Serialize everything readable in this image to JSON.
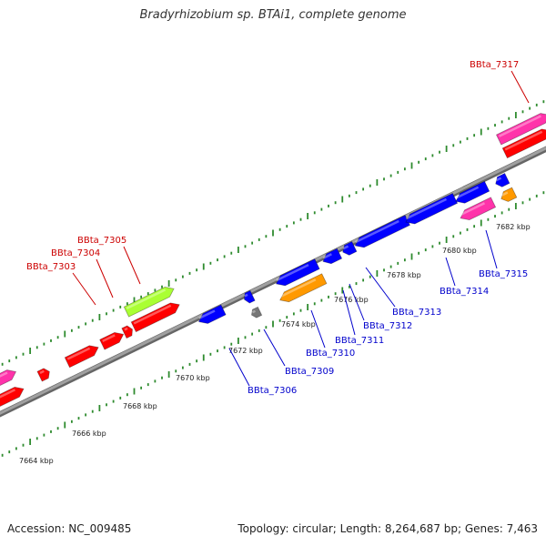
{
  "title": "Bradyrhizobium sp. BTAi1, complete genome",
  "footer": {
    "accession": "Accession: NC_009485",
    "topology": "Topology: circular; Length: 8,264,687 bp; Genes: 7,463"
  },
  "colors": {
    "backbone": "#8c8c8c",
    "dots": "#2e8b2e",
    "forward_label": "#cc0000",
    "reverse_label": "#0000cc",
    "red": "#ff0000",
    "blue": "#0000ff",
    "magenta": "#ff33aa",
    "lime": "#aaff33",
    "orange": "#ff9900",
    "gray": "#777777"
  },
  "scale_ticks": [
    {
      "kbp": 7664,
      "label": "7664 kbp"
    },
    {
      "kbp": 7666,
      "label": "7666 kbp"
    },
    {
      "kbp": 7668,
      "label": "7668 kbp"
    },
    {
      "kbp": 7670,
      "label": "7670 kbp"
    },
    {
      "kbp": 7672,
      "label": "7672 kbp"
    },
    {
      "kbp": 7674,
      "label": "7674 kbp"
    },
    {
      "kbp": 7676,
      "label": "7676 kbp"
    },
    {
      "kbp": 7678,
      "label": "7678 kbp"
    },
    {
      "kbp": 7680,
      "label": "7680 kbp"
    },
    {
      "kbp": 7682,
      "label": "7682 kbp"
    }
  ],
  "forward_labels": [
    {
      "id": "BBta_7303",
      "text": "BBta_7303"
    },
    {
      "id": "BBta_7304",
      "text": "BBta_7304"
    },
    {
      "id": "BBta_7305",
      "text": "BBta_7305"
    },
    {
      "id": "BBta_7317",
      "text": "BBta_7317"
    }
  ],
  "reverse_labels": [
    {
      "id": "BBta_7306",
      "text": "BBta_7306"
    },
    {
      "id": "BBta_7309",
      "text": "BBta_7309"
    },
    {
      "id": "BBta_7310",
      "text": "BBta_7310"
    },
    {
      "id": "BBta_7311",
      "text": "BBta_7311"
    },
    {
      "id": "BBta_7312",
      "text": "BBta_7312"
    },
    {
      "id": "BBta_7313",
      "text": "BBta_7313"
    },
    {
      "id": "BBta_7314",
      "text": "BBta_7314"
    },
    {
      "id": "BBta_7315",
      "text": "BBta_7315"
    }
  ]
}
